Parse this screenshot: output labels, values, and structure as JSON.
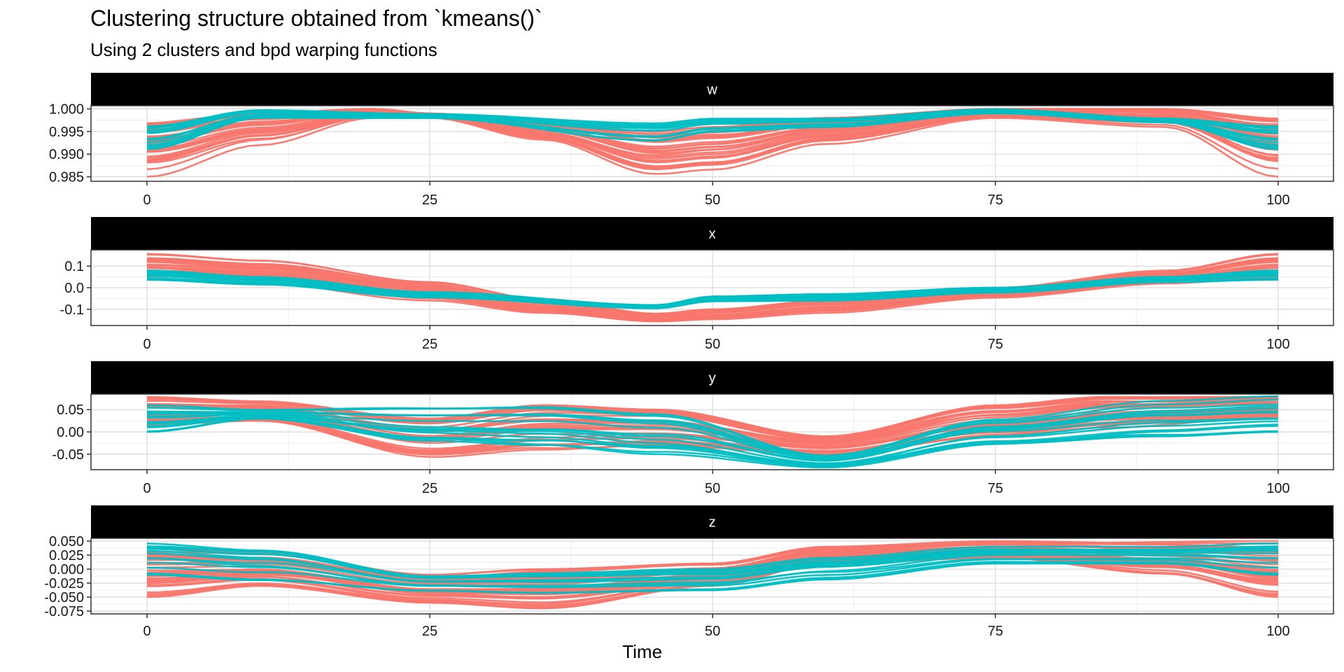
{
  "chart_data": {
    "type": "line",
    "title": "Clustering structure obtained from `kmeans()`",
    "subtitle": "Using 2 clusters and bpd warping functions",
    "xlabel": "Time",
    "ylabel": "",
    "xlim": [
      0,
      100
    ],
    "x_ticks": [
      "0",
      "25",
      "50",
      "75",
      "100"
    ],
    "grid": true,
    "legend": "none",
    "colors": {
      "cluster_1": "#F8766D",
      "cluster_2": "#00BFC4",
      "strip": "#000000",
      "grid": "#d9d9d9"
    },
    "series_groups": [
      {
        "cluster": "cluster_1",
        "color": "#F8766D",
        "count": 30,
        "approx_envelope": {
          "w": {
            "x": [
              0,
              10,
              20,
              25,
              35,
              45,
              50,
              60,
              75,
              90,
              100
            ],
            "low": [
              0.985,
              0.992,
              0.998,
              0.998,
              0.993,
              0.985,
              0.986,
              0.992,
              0.998,
              0.996,
              0.985
            ],
            "high": [
              0.997,
              0.999,
              1.0,
              0.999,
              0.997,
              0.995,
              0.996,
              0.998,
              1.0,
              1.0,
              0.998
            ]
          },
          "x": {
            "x": [
              0,
              10,
              25,
              35,
              45,
              50,
              60,
              75,
              90,
              100
            ],
            "low": [
              0.03,
              0.02,
              -0.06,
              -0.12,
              -0.16,
              -0.15,
              -0.12,
              -0.05,
              0.01,
              0.03
            ],
            "high": [
              0.16,
              0.13,
              0.03,
              -0.05,
              -0.12,
              -0.1,
              -0.06,
              0.0,
              0.08,
              0.16
            ]
          },
          "y": {
            "x": [
              0,
              10,
              25,
              35,
              45,
              60,
              75,
              85,
              100
            ],
            "low": [
              0.01,
              0.02,
              -0.06,
              -0.04,
              -0.03,
              -0.05,
              -0.01,
              0.01,
              0.03
            ],
            "high": [
              0.08,
              0.07,
              0.03,
              0.06,
              0.05,
              -0.01,
              0.06,
              0.08,
              0.08
            ]
          },
          "z": {
            "x": [
              0,
              10,
              25,
              35,
              50,
              60,
              75,
              90,
              100
            ],
            "low": [
              -0.05,
              -0.03,
              -0.06,
              -0.07,
              -0.03,
              0.01,
              0.02,
              -0.01,
              -0.05
            ],
            "high": [
              0.04,
              0.03,
              -0.01,
              0.0,
              0.01,
              0.04,
              0.05,
              0.05,
              0.05
            ]
          }
        }
      },
      {
        "cluster": "cluster_2",
        "color": "#00BFC4",
        "count": 15,
        "approx_envelope": {
          "w": {
            "x": [
              0,
              10,
              25,
              45,
              50,
              60,
              75,
              90,
              100
            ],
            "low": [
              0.991,
              0.998,
              0.998,
              0.993,
              0.995,
              0.996,
              0.999,
              0.997,
              0.991
            ],
            "high": [
              0.997,
              1.0,
              0.999,
              0.997,
              0.998,
              0.998,
              1.0,
              0.998,
              0.997
            ]
          },
          "x": {
            "x": [
              0,
              10,
              25,
              45,
              50,
              60,
              75,
              90,
              100
            ],
            "low": [
              0.03,
              0.01,
              -0.05,
              -0.1,
              -0.07,
              -0.07,
              -0.03,
              0.02,
              0.03
            ],
            "high": [
              0.08,
              0.05,
              -0.02,
              -0.08,
              -0.04,
              -0.03,
              0.0,
              0.05,
              0.08
            ]
          },
          "y": {
            "x": [
              0,
              10,
              25,
              35,
              45,
              60,
              75,
              90,
              100
            ],
            "low": [
              0.0,
              0.03,
              -0.02,
              -0.03,
              -0.05,
              -0.08,
              -0.03,
              -0.01,
              0.0
            ],
            "high": [
              0.06,
              0.05,
              0.06,
              0.065,
              0.05,
              -0.05,
              0.03,
              0.07,
              0.08
            ]
          },
          "z": {
            "x": [
              0,
              10,
              25,
              35,
              50,
              60,
              75,
              90,
              100
            ],
            "low": [
              -0.01,
              -0.02,
              -0.04,
              -0.045,
              -0.04,
              -0.02,
              0.01,
              0.01,
              -0.01
            ],
            "high": [
              0.05,
              0.04,
              -0.01,
              -0.005,
              0.0,
              0.02,
              0.04,
              0.04,
              0.05
            ]
          }
        }
      }
    ],
    "panels": [
      {
        "strip": "w",
        "y_ticks": [
          "1.000",
          "0.995",
          "0.990",
          "0.985"
        ],
        "y_tick_values": [
          1.0,
          0.995,
          0.99,
          0.985
        ],
        "ylim": [
          0.984,
          1.0007
        ]
      },
      {
        "strip": "x",
        "y_ticks": [
          "0.1",
          "0.0",
          "-0.1"
        ],
        "y_tick_values": [
          0.1,
          0.0,
          -0.1
        ],
        "ylim": [
          -0.175,
          0.175
        ]
      },
      {
        "strip": "y",
        "y_ticks": [
          "0.05",
          "0.00",
          "-0.05"
        ],
        "y_tick_values": [
          0.05,
          0.0,
          -0.05
        ],
        "ylim": [
          -0.085,
          0.085
        ]
      },
      {
        "strip": "z",
        "y_ticks": [
          "0.050",
          "0.025",
          "0.000",
          "-0.025",
          "-0.050",
          "-0.075"
        ],
        "y_tick_values": [
          0.05,
          0.025,
          0.0,
          -0.025,
          -0.05,
          -0.075
        ],
        "ylim": [
          -0.08,
          0.055
        ]
      }
    ]
  }
}
